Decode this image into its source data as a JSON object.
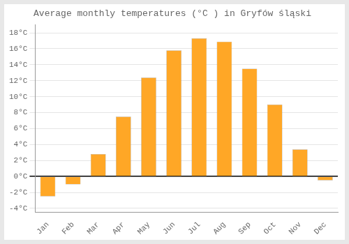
{
  "chart_data": {
    "type": "bar",
    "title": "Average monthly temperatures (°C ) in Gryfów śląski",
    "categories": [
      "Jan",
      "Feb",
      "Mar",
      "Apr",
      "May",
      "Jun",
      "Jul",
      "Aug",
      "Sep",
      "Oct",
      "Nov",
      "Dec"
    ],
    "values": [
      -2.5,
      -1.0,
      2.8,
      7.5,
      12.4,
      15.8,
      17.3,
      16.9,
      13.5,
      9.0,
      3.4,
      -0.5
    ],
    "color": "#FFA726",
    "ylim": [
      -4.5,
      19.0
    ],
    "yticks": [
      {
        "value": -4,
        "label": "-4°C"
      },
      {
        "value": -2,
        "label": "-2°C"
      },
      {
        "value": 0,
        "label": "0°C"
      },
      {
        "value": 2,
        "label": "2°C"
      },
      {
        "value": 4,
        "label": "4°C"
      },
      {
        "value": 6,
        "label": "6°C"
      },
      {
        "value": 8,
        "label": "8°C"
      },
      {
        "value": 10,
        "label": "10°C"
      },
      {
        "value": 12,
        "label": "12°C"
      },
      {
        "value": 14,
        "label": "14°C"
      },
      {
        "value": 16,
        "label": "16°C"
      },
      {
        "value": 18,
        "label": "18°C"
      }
    ],
    "grid": true
  }
}
